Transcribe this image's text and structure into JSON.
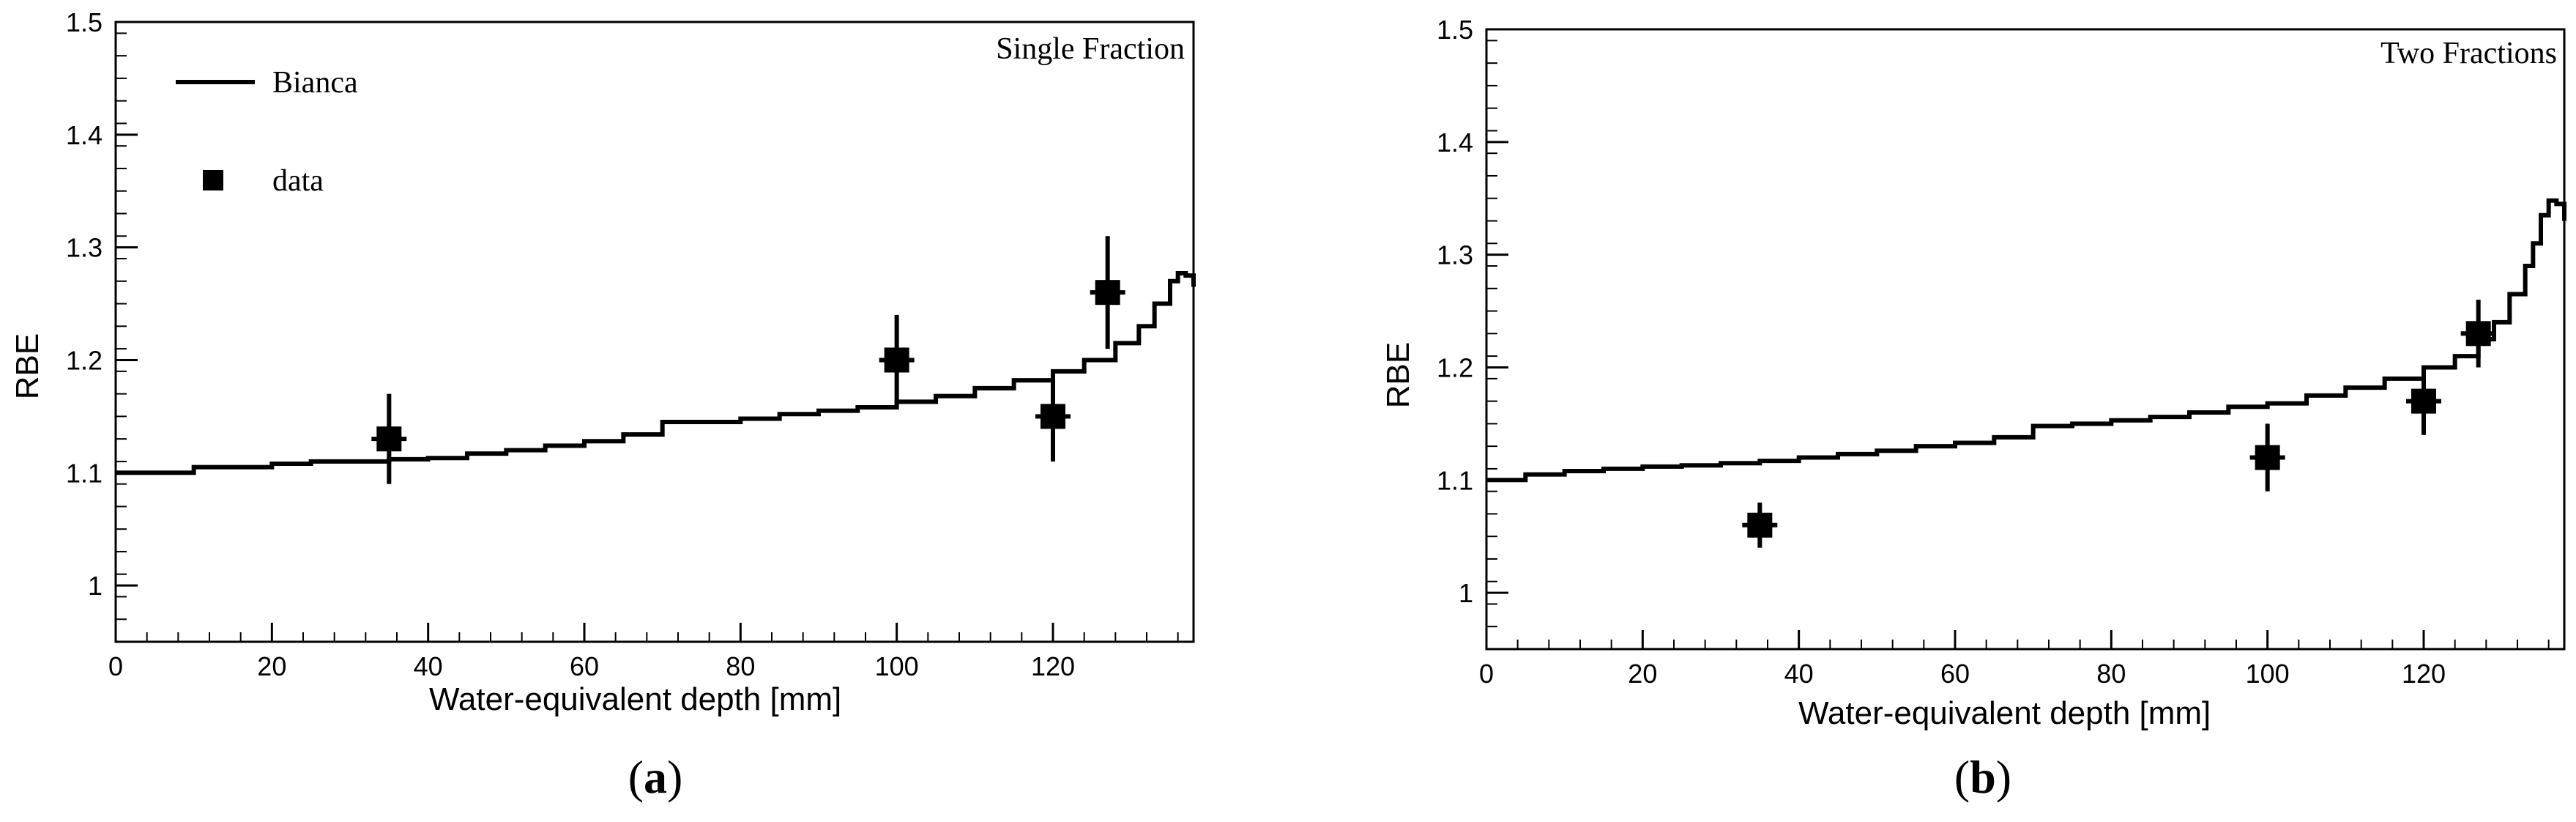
{
  "chart_data": [
    {
      "type": "line",
      "panel_label_open": "(",
      "panel_label_letter": "a",
      "panel_label_close": ")",
      "title": "Single Fraction",
      "xlabel": "Water-equivalent depth [mm]",
      "ylabel": "RBE",
      "xlim": [
        0,
        138
      ],
      "ylim": [
        0.95,
        1.5
      ],
      "xticks": [
        0,
        20,
        40,
        60,
        80,
        100,
        120
      ],
      "yticks": [
        1,
        1.1,
        1.2,
        1.3,
        1.4,
        1.5
      ],
      "legend": {
        "position": "top-left",
        "line_label": "Bianca",
        "marker_label": "data"
      },
      "series": [
        {
          "name": "Bianca",
          "style": "step",
          "x": [
            0,
            5,
            10,
            15,
            20,
            25,
            30,
            35,
            40,
            45,
            50,
            55,
            60,
            65,
            70,
            75,
            80,
            85,
            90,
            95,
            100,
            105,
            110,
            115,
            120,
            124,
            128,
            131,
            133,
            135,
            136,
            137,
            138
          ],
          "y": [
            1.1,
            1.1,
            1.105,
            1.105,
            1.108,
            1.11,
            1.11,
            1.112,
            1.113,
            1.117,
            1.12,
            1.124,
            1.128,
            1.134,
            1.145,
            1.145,
            1.148,
            1.152,
            1.155,
            1.158,
            1.163,
            1.168,
            1.175,
            1.182,
            1.19,
            1.2,
            1.215,
            1.23,
            1.25,
            1.27,
            1.277,
            1.275,
            1.265
          ]
        },
        {
          "name": "data",
          "style": "marker",
          "x": [
            35,
            100,
            120,
            127
          ],
          "y": [
            1.13,
            1.2,
            1.15,
            1.26
          ],
          "yerr": [
            0.04,
            0.04,
            0.04,
            0.05
          ]
        }
      ]
    },
    {
      "type": "line",
      "panel_label_open": "(",
      "panel_label_letter": "b",
      "panel_label_close": ")",
      "title": "Two Fractions",
      "xlabel": "Water-equivalent depth [mm]",
      "ylabel": "RBE",
      "xlim": [
        0,
        138
      ],
      "ylim": [
        0.95,
        1.5
      ],
      "xticks": [
        0,
        20,
        40,
        60,
        80,
        100,
        120
      ],
      "yticks": [
        1,
        1.1,
        1.2,
        1.3,
        1.4,
        1.5
      ],
      "series": [
        {
          "name": "Bianca",
          "style": "step",
          "x": [
            0,
            5,
            10,
            15,
            20,
            25,
            30,
            35,
            40,
            45,
            50,
            55,
            60,
            65,
            70,
            75,
            80,
            85,
            90,
            95,
            100,
            105,
            110,
            115,
            120,
            124,
            127,
            129,
            131,
            133,
            134,
            135,
            136,
            137,
            138
          ],
          "y": [
            1.1,
            1.105,
            1.108,
            1.11,
            1.112,
            1.113,
            1.115,
            1.117,
            1.12,
            1.123,
            1.126,
            1.13,
            1.133,
            1.138,
            1.148,
            1.15,
            1.153,
            1.156,
            1.16,
            1.165,
            1.168,
            1.175,
            1.182,
            1.19,
            1.2,
            1.21,
            1.225,
            1.24,
            1.265,
            1.29,
            1.31,
            1.335,
            1.348,
            1.345,
            1.33
          ]
        },
        {
          "name": "data",
          "style": "marker",
          "x": [
            35,
            100,
            120,
            127
          ],
          "y": [
            1.06,
            1.12,
            1.17,
            1.23
          ],
          "yerr": [
            0.02,
            0.03,
            0.03,
            0.03
          ]
        }
      ]
    }
  ]
}
